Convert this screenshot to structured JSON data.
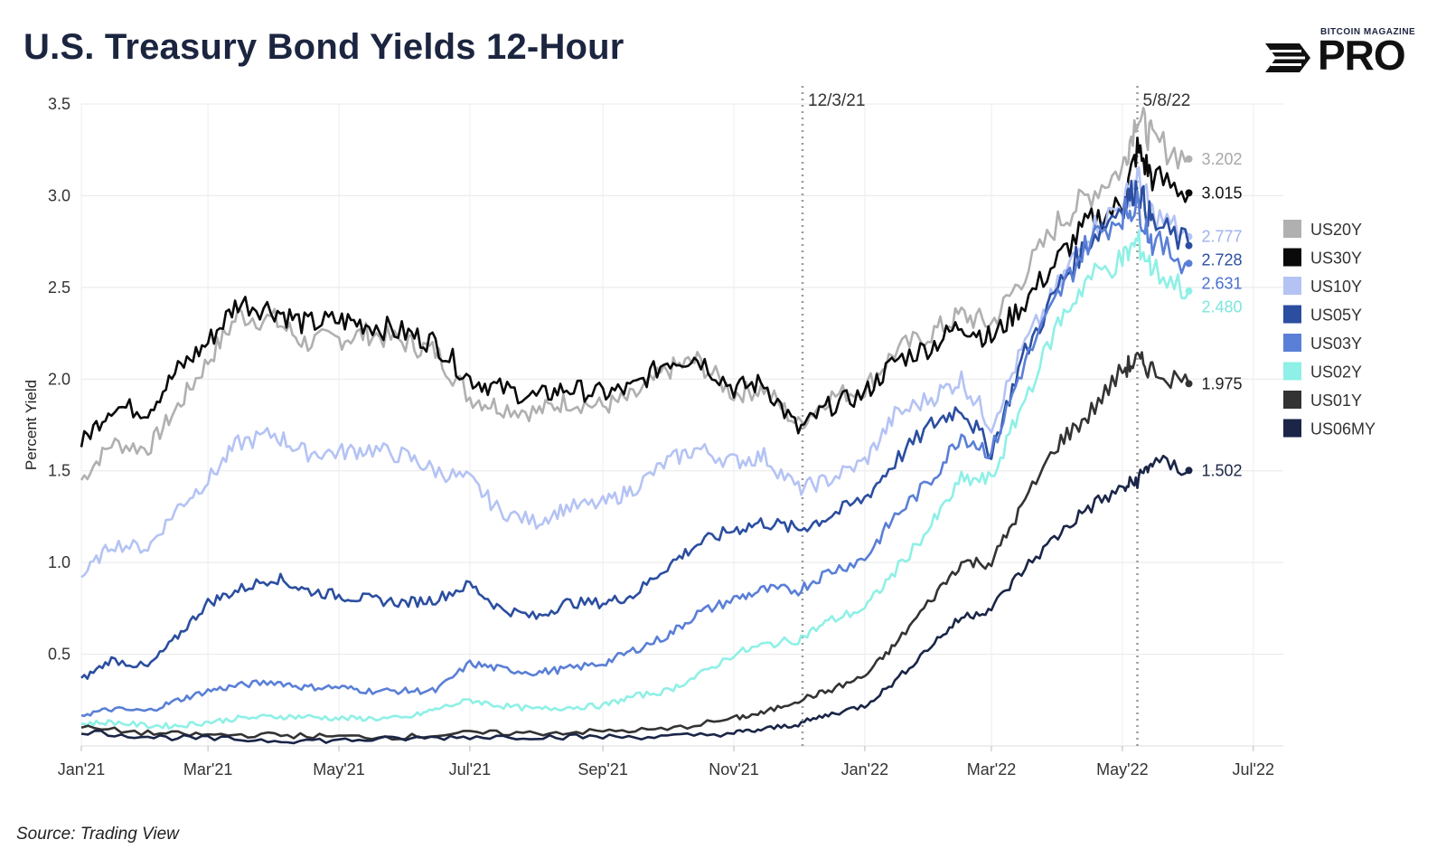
{
  "header": {
    "title": "U.S. Treasury Bond Yields 12-Hour",
    "source": "Source: Trading View"
  },
  "logo": {
    "small_text": "BITCOIN MAGAZINE",
    "big_text": "PRO"
  },
  "chart_data": {
    "type": "line",
    "title": "U.S. Treasury Bond Yields 12-Hour",
    "ylabel": "Percent Yield",
    "xlabel": "",
    "x_start": "2021-01-01",
    "x_end": "2022-07-15",
    "ylim": [
      0,
      3.5
    ],
    "y_ticks": [
      0.5,
      1.0,
      1.5,
      2.0,
      2.5,
      3.0,
      3.5
    ],
    "y_tick_labels": [
      "0.5",
      "1.0",
      "1.5",
      "2.0",
      "2.5",
      "3.0",
      "3.5"
    ],
    "x_ticks": [
      {
        "date": "2021-01-01",
        "label": "Jan'21"
      },
      {
        "date": "2021-03-01",
        "label": "Mar'21"
      },
      {
        "date": "2021-05-01",
        "label": "May'21"
      },
      {
        "date": "2021-07-01",
        "label": "Jul'21"
      },
      {
        "date": "2021-09-01",
        "label": "Sep'21"
      },
      {
        "date": "2021-11-01",
        "label": "Nov'21"
      },
      {
        "date": "2022-01-01",
        "label": "Jan'22"
      },
      {
        "date": "2022-03-01",
        "label": "Mar'22"
      },
      {
        "date": "2022-05-01",
        "label": "May'22"
      },
      {
        "date": "2022-07-01",
        "label": "Jul'22"
      }
    ],
    "grid": true,
    "legend_position": "right",
    "vlines": [
      {
        "date": "2021-12-03",
        "label": "12/3/21"
      },
      {
        "date": "2022-05-08",
        "label": "5/8/22"
      }
    ],
    "series": [
      {
        "name": "US20Y",
        "color": "#b0b0b0",
        "label_color": "#a8a8a8",
        "end_label": "3.202",
        "x": [
          "2021-01-01",
          "2021-01-15",
          "2021-02-01",
          "2021-02-15",
          "2021-03-01",
          "2021-03-15",
          "2021-04-01",
          "2021-04-15",
          "2021-05-01",
          "2021-05-15",
          "2021-06-01",
          "2021-06-15",
          "2021-07-01",
          "2021-07-15",
          "2021-08-01",
          "2021-08-15",
          "2021-09-01",
          "2021-09-15",
          "2021-10-01",
          "2021-10-15",
          "2021-11-01",
          "2021-11-15",
          "2021-12-01",
          "2021-12-15",
          "2022-01-01",
          "2022-01-15",
          "2022-02-01",
          "2022-02-15",
          "2022-03-01",
          "2022-03-15",
          "2022-04-01",
          "2022-04-15",
          "2022-05-01",
          "2022-05-08",
          "2022-05-15",
          "2022-06-01"
        ],
        "y": [
          1.45,
          1.65,
          1.62,
          1.85,
          2.1,
          2.35,
          2.32,
          2.2,
          2.22,
          2.25,
          2.2,
          2.15,
          1.9,
          1.85,
          1.82,
          1.88,
          1.85,
          1.9,
          2.05,
          2.1,
          1.92,
          1.95,
          1.75,
          1.9,
          1.95,
          2.15,
          2.25,
          2.35,
          2.3,
          2.55,
          2.85,
          3.0,
          3.15,
          3.45,
          3.3,
          3.2
        ]
      },
      {
        "name": "US30Y",
        "color": "#0a0a0a",
        "label_color": "#111111",
        "end_label": "3.015",
        "x": [
          "2021-01-01",
          "2021-01-15",
          "2021-02-01",
          "2021-02-15",
          "2021-03-01",
          "2021-03-15",
          "2021-04-01",
          "2021-04-15",
          "2021-05-01",
          "2021-05-15",
          "2021-06-01",
          "2021-06-15",
          "2021-07-01",
          "2021-07-15",
          "2021-08-01",
          "2021-08-15",
          "2021-09-01",
          "2021-09-15",
          "2021-10-01",
          "2021-10-15",
          "2021-11-01",
          "2021-11-15",
          "2021-12-01",
          "2021-12-15",
          "2022-01-01",
          "2022-01-15",
          "2022-02-01",
          "2022-02-15",
          "2022-03-01",
          "2022-03-15",
          "2022-04-01",
          "2022-04-15",
          "2022-05-01",
          "2022-05-08",
          "2022-05-15",
          "2022-06-01"
        ],
        "y": [
          1.65,
          1.85,
          1.83,
          2.05,
          2.2,
          2.42,
          2.38,
          2.3,
          2.32,
          2.3,
          2.25,
          2.2,
          2.0,
          1.95,
          1.9,
          1.95,
          1.92,
          1.95,
          2.1,
          2.12,
          1.95,
          1.98,
          1.72,
          1.85,
          1.92,
          2.1,
          2.18,
          2.3,
          2.22,
          2.4,
          2.65,
          2.85,
          2.95,
          3.25,
          3.1,
          3.015
        ]
      },
      {
        "name": "US10Y",
        "color": "#b4c3f4",
        "label_color": "#9fb2ef",
        "end_label": "2.777",
        "x": [
          "2021-01-01",
          "2021-01-15",
          "2021-02-01",
          "2021-02-15",
          "2021-03-01",
          "2021-03-15",
          "2021-04-01",
          "2021-04-15",
          "2021-05-01",
          "2021-05-15",
          "2021-06-01",
          "2021-06-15",
          "2021-07-01",
          "2021-07-15",
          "2021-08-01",
          "2021-08-15",
          "2021-09-01",
          "2021-09-15",
          "2021-10-01",
          "2021-10-15",
          "2021-11-01",
          "2021-11-15",
          "2021-12-01",
          "2021-12-15",
          "2022-01-01",
          "2022-01-15",
          "2022-02-01",
          "2022-02-15",
          "2022-03-01",
          "2022-03-15",
          "2022-04-01",
          "2022-04-15",
          "2022-05-01",
          "2022-05-08",
          "2022-05-15",
          "2022-06-01"
        ],
        "y": [
          0.92,
          1.1,
          1.08,
          1.3,
          1.45,
          1.65,
          1.7,
          1.6,
          1.6,
          1.62,
          1.58,
          1.5,
          1.45,
          1.28,
          1.22,
          1.3,
          1.32,
          1.4,
          1.55,
          1.62,
          1.55,
          1.58,
          1.4,
          1.45,
          1.55,
          1.8,
          1.9,
          2.0,
          1.75,
          2.15,
          2.5,
          2.8,
          2.95,
          3.1,
          2.9,
          2.777
        ]
      },
      {
        "name": "US05Y",
        "color": "#2b4ea0",
        "label_color": "#2b4ea0",
        "end_label": "2.728",
        "x": [
          "2021-01-01",
          "2021-01-15",
          "2021-02-01",
          "2021-02-15",
          "2021-03-01",
          "2021-03-15",
          "2021-04-01",
          "2021-04-15",
          "2021-05-01",
          "2021-05-15",
          "2021-06-01",
          "2021-06-15",
          "2021-07-01",
          "2021-07-15",
          "2021-08-01",
          "2021-08-15",
          "2021-09-01",
          "2021-09-15",
          "2021-10-01",
          "2021-10-15",
          "2021-11-01",
          "2021-11-15",
          "2021-12-01",
          "2021-12-15",
          "2022-01-01",
          "2022-01-15",
          "2022-02-01",
          "2022-02-15",
          "2022-03-01",
          "2022-03-15",
          "2022-04-01",
          "2022-04-15",
          "2022-05-01",
          "2022-05-08",
          "2022-05-15",
          "2022-06-01"
        ],
        "y": [
          0.36,
          0.47,
          0.43,
          0.6,
          0.78,
          0.85,
          0.92,
          0.85,
          0.82,
          0.8,
          0.78,
          0.8,
          0.88,
          0.75,
          0.7,
          0.78,
          0.78,
          0.82,
          0.98,
          1.1,
          1.18,
          1.22,
          1.18,
          1.25,
          1.35,
          1.55,
          1.75,
          1.85,
          1.6,
          2.1,
          2.5,
          2.75,
          2.95,
          3.05,
          2.85,
          2.728
        ]
      },
      {
        "name": "US03Y",
        "color": "#5a7fd6",
        "label_color": "#4a70cf",
        "end_label": "2.631",
        "x": [
          "2021-01-01",
          "2021-01-15",
          "2021-02-01",
          "2021-02-15",
          "2021-03-01",
          "2021-03-15",
          "2021-04-01",
          "2021-04-15",
          "2021-05-01",
          "2021-05-15",
          "2021-06-01",
          "2021-06-15",
          "2021-07-01",
          "2021-07-15",
          "2021-08-01",
          "2021-08-15",
          "2021-09-01",
          "2021-09-15",
          "2021-10-01",
          "2021-10-15",
          "2021-11-01",
          "2021-11-15",
          "2021-12-01",
          "2021-12-15",
          "2022-01-01",
          "2022-01-15",
          "2022-02-01",
          "2022-02-15",
          "2022-03-01",
          "2022-03-15",
          "2022-04-01",
          "2022-04-15",
          "2022-05-01",
          "2022-05-08",
          "2022-05-15",
          "2022-06-01"
        ],
        "y": [
          0.17,
          0.2,
          0.19,
          0.25,
          0.3,
          0.33,
          0.35,
          0.32,
          0.32,
          0.3,
          0.3,
          0.3,
          0.45,
          0.42,
          0.4,
          0.42,
          0.45,
          0.52,
          0.6,
          0.72,
          0.8,
          0.85,
          0.85,
          0.95,
          1.02,
          1.25,
          1.45,
          1.7,
          1.6,
          2.05,
          2.45,
          2.75,
          2.9,
          2.95,
          2.75,
          2.631
        ]
      },
      {
        "name": "US02Y",
        "color": "#8ef0e6",
        "label_color": "#7be6dd",
        "end_label": "2.480",
        "x": [
          "2021-01-01",
          "2021-01-15",
          "2021-02-01",
          "2021-02-15",
          "2021-03-01",
          "2021-03-15",
          "2021-04-01",
          "2021-04-15",
          "2021-05-01",
          "2021-05-15",
          "2021-06-01",
          "2021-06-15",
          "2021-07-01",
          "2021-07-15",
          "2021-08-01",
          "2021-08-15",
          "2021-09-01",
          "2021-09-15",
          "2021-10-01",
          "2021-10-15",
          "2021-11-01",
          "2021-11-15",
          "2021-12-01",
          "2021-12-15",
          "2022-01-01",
          "2022-01-15",
          "2022-02-01",
          "2022-02-15",
          "2022-03-01",
          "2022-03-15",
          "2022-04-01",
          "2022-04-15",
          "2022-05-01",
          "2022-05-08",
          "2022-05-15",
          "2022-06-01"
        ],
        "y": [
          0.12,
          0.13,
          0.11,
          0.11,
          0.13,
          0.15,
          0.16,
          0.16,
          0.15,
          0.15,
          0.15,
          0.2,
          0.25,
          0.22,
          0.2,
          0.21,
          0.22,
          0.27,
          0.3,
          0.38,
          0.5,
          0.55,
          0.58,
          0.68,
          0.75,
          0.95,
          1.2,
          1.45,
          1.45,
          1.85,
          2.3,
          2.55,
          2.65,
          2.75,
          2.6,
          2.48
        ]
      },
      {
        "name": "US01Y",
        "color": "#333333",
        "label_color": "#222222",
        "end_label": "1.975",
        "x": [
          "2021-01-01",
          "2021-02-01",
          "2021-03-01",
          "2021-04-01",
          "2021-05-01",
          "2021-06-01",
          "2021-07-01",
          "2021-08-01",
          "2021-09-01",
          "2021-10-01",
          "2021-11-01",
          "2021-11-15",
          "2021-12-01",
          "2021-12-15",
          "2022-01-01",
          "2022-01-15",
          "2022-02-01",
          "2022-02-15",
          "2022-03-01",
          "2022-03-15",
          "2022-04-01",
          "2022-04-15",
          "2022-05-01",
          "2022-05-08",
          "2022-05-15",
          "2022-06-01"
        ],
        "y": [
          0.1,
          0.07,
          0.06,
          0.06,
          0.05,
          0.05,
          0.07,
          0.07,
          0.08,
          0.09,
          0.15,
          0.18,
          0.25,
          0.3,
          0.38,
          0.55,
          0.8,
          1.0,
          1.0,
          1.3,
          1.65,
          1.8,
          2.05,
          2.1,
          2.05,
          1.975
        ]
      },
      {
        "name": "US06MY",
        "color": "#1a2547",
        "label_color": "#1a2547",
        "end_label": "1.502",
        "x": [
          "2021-01-01",
          "2021-02-01",
          "2021-03-01",
          "2021-04-01",
          "2021-05-01",
          "2021-06-01",
          "2021-07-01",
          "2021-08-01",
          "2021-09-01",
          "2021-10-01",
          "2021-11-01",
          "2021-11-15",
          "2021-12-01",
          "2021-12-15",
          "2022-01-01",
          "2022-01-15",
          "2022-02-01",
          "2022-02-15",
          "2022-03-01",
          "2022-03-15",
          "2022-04-01",
          "2022-04-15",
          "2022-05-01",
          "2022-05-08",
          "2022-05-15",
          "2022-06-01"
        ],
        "y": [
          0.08,
          0.05,
          0.04,
          0.03,
          0.03,
          0.04,
          0.05,
          0.05,
          0.05,
          0.05,
          0.07,
          0.09,
          0.12,
          0.17,
          0.22,
          0.35,
          0.55,
          0.7,
          0.75,
          0.95,
          1.15,
          1.3,
          1.4,
          1.45,
          1.55,
          1.502
        ]
      }
    ]
  }
}
